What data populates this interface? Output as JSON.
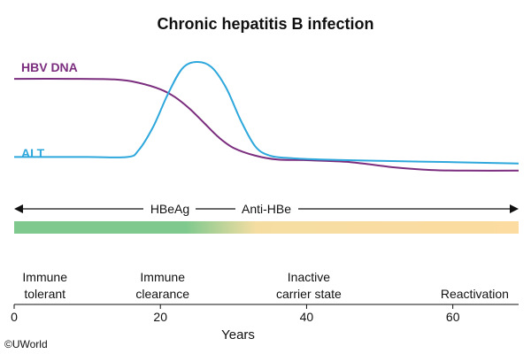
{
  "chart_data": {
    "type": "line",
    "title": "Chronic hepatitis B infection",
    "xlabel": "Years",
    "ylabel": "",
    "xlim": [
      0,
      69
    ],
    "ylim": [
      0,
      100
    ],
    "xticks": [
      0,
      20,
      40,
      60
    ],
    "y_scale": "relative level (no axis values shown)",
    "series": [
      {
        "name": "HBV DNA",
        "color": "#7b2d7e",
        "x": [
          0,
          8,
          14,
          17,
          20,
          22,
          24,
          26,
          28,
          30,
          33,
          36,
          40,
          46,
          52,
          57,
          62,
          69
        ],
        "y": [
          92,
          92,
          91.5,
          89,
          84,
          78,
          69,
          58,
          47,
          39,
          33,
          30,
          29.5,
          28,
          24,
          22,
          21.5,
          21.5
        ]
      },
      {
        "name": "ALT",
        "color": "#2ea8dc",
        "x": [
          0,
          10,
          15.5,
          17,
          19,
          21,
          23,
          25,
          27,
          29,
          31,
          33,
          35,
          38,
          42,
          50,
          60,
          69
        ],
        "y": [
          32,
          32,
          32,
          37,
          55,
          80,
          100,
          105,
          101,
          85,
          60,
          40,
          33,
          31,
          30,
          29,
          28,
          27
        ]
      }
    ],
    "annotations": {
      "hbeag_label": "HBeAg",
      "antihbe_label": "Anti-HBe",
      "phases": [
        {
          "line1": "Immune",
          "line2": "tolerant",
          "x": 4.2
        },
        {
          "line1": "Immune",
          "line2": "clearance",
          "x": 20.3
        },
        {
          "line1": "Inactive",
          "line2": "carrier state",
          "x": 40.3
        },
        {
          "line1": "Reactivation",
          "line2": "",
          "x": 63
        }
      ],
      "gradient_colors": [
        "#7fc98e",
        "#fcdca0"
      ]
    },
    "credit": "©UWorld"
  }
}
